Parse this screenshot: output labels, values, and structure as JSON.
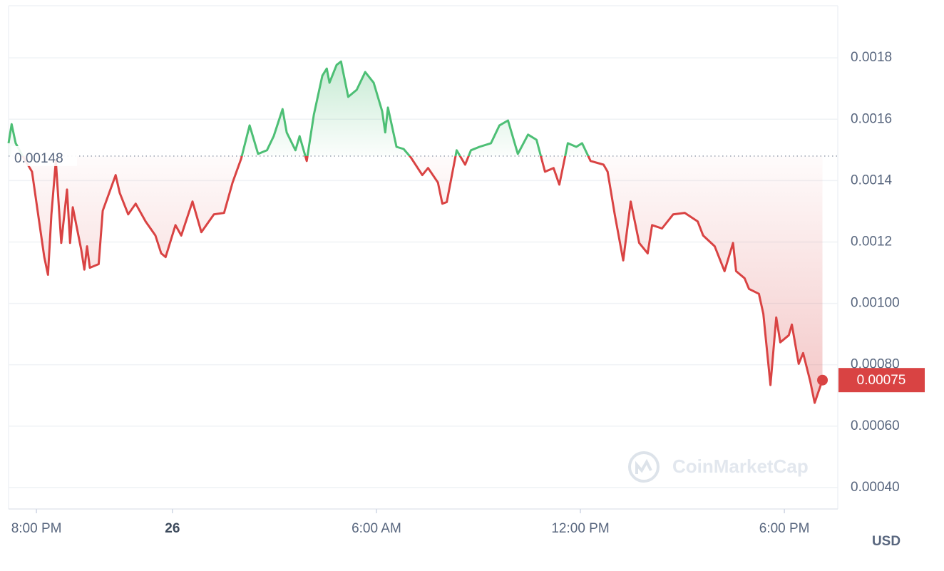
{
  "chart_data": {
    "type": "line",
    "x": [
      -4.82,
      -4.73,
      -4.61,
      -4.44,
      -4.13,
      -3.92,
      -3.77,
      -3.66,
      -3.56,
      -3.43,
      -3.27,
      -3.1,
      -3.01,
      -2.93,
      -2.68,
      -2.59,
      -2.51,
      -2.43,
      -2.17,
      -2.05,
      -1.67,
      -1.55,
      -1.3,
      -1.08,
      -0.79,
      -0.5,
      -0.33,
      -0.2,
      0.09,
      0.26,
      0.59,
      0.85,
      1.22,
      1.52,
      1.77,
      2.02,
      2.27,
      2.52,
      2.78,
      2.98,
      3.24,
      3.36,
      3.62,
      3.74,
      3.95,
      4.16,
      4.41,
      4.54,
      4.62,
      4.83,
      4.96,
      5.17,
      5.42,
      5.67,
      5.92,
      6.17,
      6.26,
      6.34,
      6.59,
      6.8,
      7.01,
      7.35,
      7.52,
      7.81,
      7.94,
      8.07,
      8.36,
      8.61,
      8.78,
      9.03,
      9.37,
      9.62,
      9.87,
      10.16,
      10.46,
      10.71,
      10.96,
      11.21,
      11.38,
      11.63,
      11.88,
      12.05,
      12.3,
      12.68,
      12.8,
      13.01,
      13.26,
      13.48,
      13.73,
      13.98,
      14.11,
      14.4,
      14.73,
      15.07,
      15.45,
      15.61,
      15.95,
      16.24,
      16.49,
      16.58,
      16.83,
      16.96,
      17.25,
      17.38,
      17.59,
      17.76,
      17.88,
      18.13,
      18.22,
      18.42,
      18.55,
      18.76,
      18.89,
      19.12
    ],
    "values": [
      0.001522,
      0.001584,
      0.001522,
      0.001487,
      0.001429,
      0.001267,
      0.001151,
      0.001093,
      0.00129,
      0.001464,
      0.001197,
      0.001371,
      0.001197,
      0.001313,
      0.001174,
      0.00111,
      0.001186,
      0.001116,
      0.001128,
      0.001302,
      0.001418,
      0.00136,
      0.00129,
      0.001325,
      0.001267,
      0.001221,
      0.001163,
      0.001151,
      0.001255,
      0.001221,
      0.001332,
      0.001232,
      0.00129,
      0.001295,
      0.001394,
      0.001471,
      0.00158,
      0.001487,
      0.001499,
      0.001545,
      0.001633,
      0.001557,
      0.001499,
      0.001545,
      0.001464,
      0.001615,
      0.001742,
      0.001765,
      0.001719,
      0.001777,
      0.001788,
      0.001673,
      0.001696,
      0.001754,
      0.001719,
      0.001626,
      0.001557,
      0.001638,
      0.00151,
      0.001503,
      0.001476,
      0.001418,
      0.001441,
      0.001394,
      0.001325,
      0.00133,
      0.001499,
      0.001452,
      0.001499,
      0.00151,
      0.001522,
      0.00158,
      0.001596,
      0.001487,
      0.00155,
      0.001533,
      0.001429,
      0.001441,
      0.001387,
      0.001522,
      0.00151,
      0.001522,
      0.001464,
      0.001452,
      0.001429,
      0.00129,
      0.00114,
      0.001332,
      0.001197,
      0.001163,
      0.001255,
      0.001244,
      0.00129,
      0.001295,
      0.001267,
      0.001221,
      0.001186,
      0.001105,
      0.001197,
      0.001105,
      0.001082,
      0.001047,
      0.001031,
      0.000966,
      0.000734,
      0.000954,
      0.000873,
      0.000896,
      0.000931,
      0.000803,
      0.000838,
      0.000746,
      0.000676,
      0.00075
    ],
    "reference_value": 0.00148,
    "colors": {
      "above": "#4dbf75",
      "below": "#d94343"
    },
    "xlim": [
      -4.82,
      19.57
    ],
    "xticks": [
      {
        "value": -4,
        "label": "8:00 PM"
      },
      {
        "value": 0,
        "label": "26"
      },
      {
        "value": 6,
        "label": "6:00 AM"
      },
      {
        "value": 12,
        "label": "12:00 PM"
      },
      {
        "value": 18,
        "label": "6:00 PM"
      }
    ],
    "ylim": [
      0.00033,
      0.00197
    ],
    "yticks": [
      {
        "value": 0.0004,
        "label": "0.00040"
      },
      {
        "value": 0.0006,
        "label": "0.00060"
      },
      {
        "value": 0.0008,
        "label": "0.00080"
      },
      {
        "value": 0.001,
        "label": "0.00100"
      },
      0.0012,
      0.0014,
      0.0016,
      0.0018
    ],
    "y_unit": "USD",
    "grid": true,
    "watermark": "CoinMarketCap"
  }
}
